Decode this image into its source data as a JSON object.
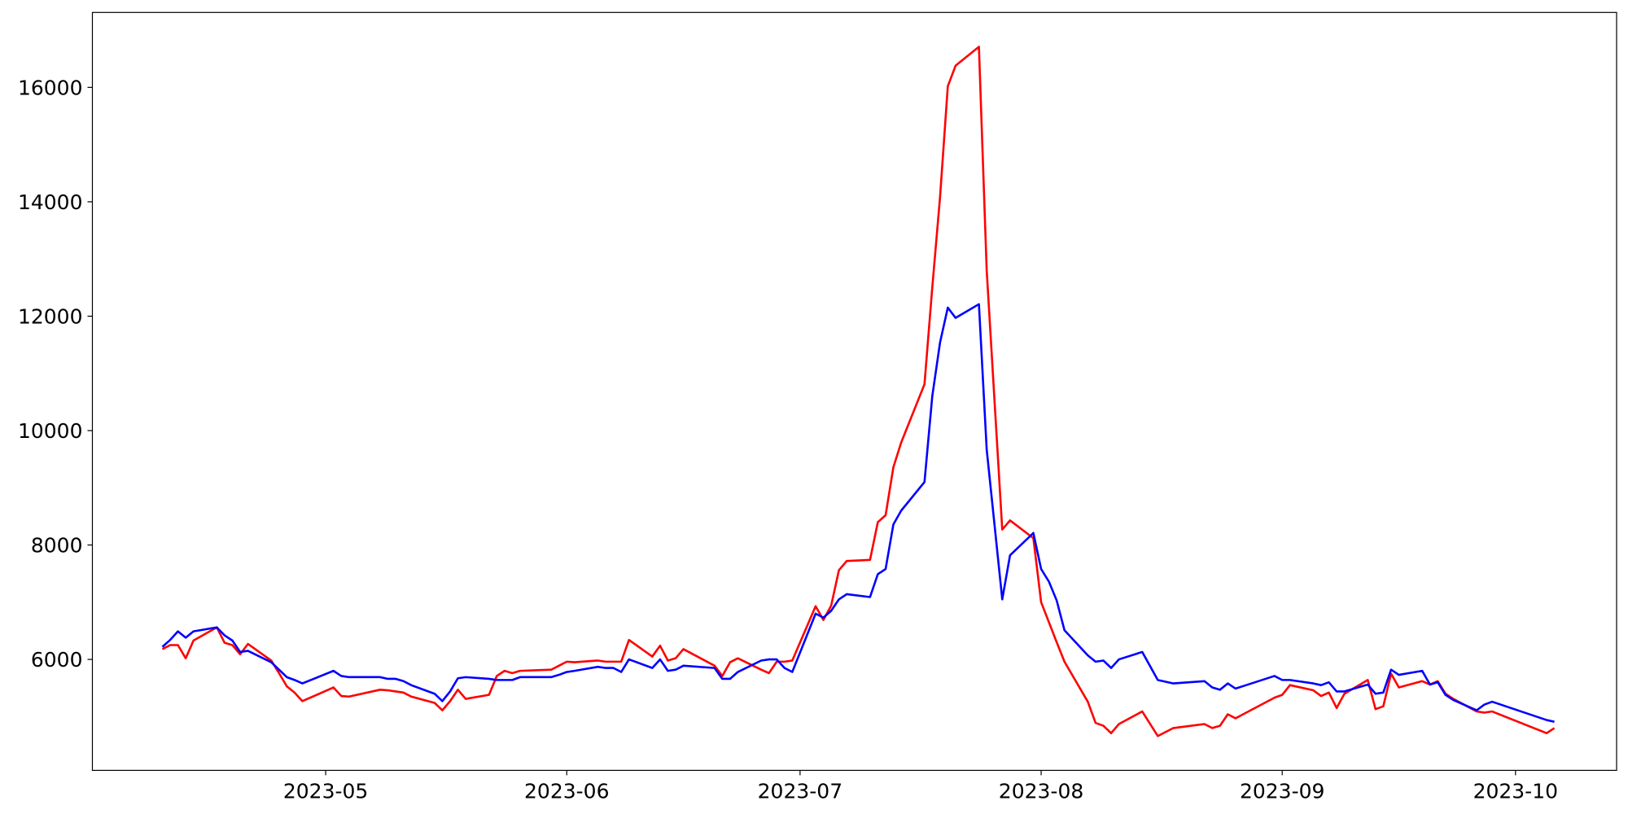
{
  "chart_data": {
    "type": "line",
    "x": [
      "2023-04-10",
      "2023-04-11",
      "2023-04-12",
      "2023-04-13",
      "2023-04-14",
      "2023-04-17",
      "2023-04-18",
      "2023-04-19",
      "2023-04-20",
      "2023-04-21",
      "2023-04-24",
      "2023-04-25",
      "2023-04-26",
      "2023-04-27",
      "2023-04-28",
      "2023-05-02",
      "2023-05-03",
      "2023-05-04",
      "2023-05-08",
      "2023-05-09",
      "2023-05-10",
      "2023-05-11",
      "2023-05-12",
      "2023-05-15",
      "2023-05-16",
      "2023-05-17",
      "2023-05-18",
      "2023-05-19",
      "2023-05-22",
      "2023-05-23",
      "2023-05-24",
      "2023-05-25",
      "2023-05-26",
      "2023-05-30",
      "2023-05-31",
      "2023-06-01",
      "2023-06-02",
      "2023-06-05",
      "2023-06-06",
      "2023-06-07",
      "2023-06-08",
      "2023-06-09",
      "2023-06-12",
      "2023-06-13",
      "2023-06-14",
      "2023-06-15",
      "2023-06-16",
      "2023-06-20",
      "2023-06-21",
      "2023-06-22",
      "2023-06-23",
      "2023-06-26",
      "2023-06-27",
      "2023-06-28",
      "2023-06-29",
      "2023-06-30",
      "2023-07-03",
      "2023-07-04",
      "2023-07-05",
      "2023-07-06",
      "2023-07-07",
      "2023-07-10",
      "2023-07-11",
      "2023-07-12",
      "2023-07-13",
      "2023-07-14",
      "2023-07-17",
      "2023-07-18",
      "2023-07-19",
      "2023-07-20",
      "2023-07-21",
      "2023-07-24",
      "2023-07-25",
      "2023-07-27",
      "2023-07-28",
      "2023-07-31",
      "2023-08-01",
      "2023-08-02",
      "2023-08-03",
      "2023-08-04",
      "2023-08-07",
      "2023-08-08",
      "2023-08-09",
      "2023-08-10",
      "2023-08-11",
      "2023-08-14",
      "2023-08-16",
      "2023-08-18",
      "2023-08-22",
      "2023-08-23",
      "2023-08-24",
      "2023-08-25",
      "2023-08-26",
      "2023-08-31",
      "2023-09-01",
      "2023-09-02",
      "2023-09-05",
      "2023-09-06",
      "2023-09-07",
      "2023-09-08",
      "2023-09-09",
      "2023-09-12",
      "2023-09-13",
      "2023-09-14",
      "2023-09-15",
      "2023-09-16",
      "2023-09-19",
      "2023-09-20",
      "2023-09-21",
      "2023-09-22",
      "2023-09-23",
      "2023-09-26",
      "2023-09-27",
      "2023-09-28",
      "2023-10-05",
      "2023-10-06"
    ],
    "series": [
      {
        "color": "#ff0000",
        "values": [
          6180,
          6250,
          6250,
          6020,
          6330,
          6560,
          6290,
          6250,
          6090,
          6270,
          5980,
          5760,
          5530,
          5420,
          5270,
          5510,
          5360,
          5350,
          5470,
          5460,
          5440,
          5420,
          5350,
          5240,
          5110,
          5270,
          5470,
          5310,
          5380,
          5710,
          5800,
          5760,
          5800,
          5820,
          5890,
          5960,
          5950,
          5980,
          5960,
          5960,
          5960,
          6340,
          6050,
          6240,
          5980,
          6020,
          6180,
          5890,
          5710,
          5950,
          6020,
          5820,
          5760,
          5960,
          5960,
          5980,
          6930,
          6690,
          6940,
          7560,
          7720,
          7740,
          8400,
          8520,
          9360,
          9790,
          10810,
          12500,
          14080,
          16020,
          16380,
          16710,
          12800,
          8270,
          8430,
          8120,
          7000,
          6650,
          6300,
          5960,
          5260,
          4890,
          4840,
          4710,
          4870,
          5090,
          4660,
          4800,
          4870,
          4800,
          4840,
          5040,
          4970,
          5330,
          5380,
          5550,
          5460,
          5360,
          5420,
          5150,
          5400,
          5640,
          5130,
          5180,
          5750,
          5510,
          5620,
          5560,
          5620,
          5400,
          5310,
          5090,
          5070,
          5090,
          4710,
          4800
        ]
      },
      {
        "color": "#0000ff",
        "values": [
          6220,
          6340,
          6490,
          6380,
          6490,
          6560,
          6420,
          6330,
          6130,
          6150,
          5950,
          5820,
          5690,
          5640,
          5580,
          5800,
          5710,
          5690,
          5690,
          5660,
          5660,
          5620,
          5550,
          5400,
          5270,
          5440,
          5670,
          5690,
          5660,
          5640,
          5640,
          5640,
          5690,
          5690,
          5730,
          5780,
          5800,
          5870,
          5850,
          5850,
          5780,
          6000,
          5850,
          6000,
          5800,
          5820,
          5890,
          5850,
          5660,
          5660,
          5780,
          5980,
          6000,
          6000,
          5850,
          5780,
          6800,
          6730,
          6850,
          7050,
          7140,
          7090,
          7490,
          7580,
          8360,
          8600,
          9100,
          10600,
          11540,
          12150,
          11970,
          12210,
          9670,
          7050,
          7820,
          8210,
          7580,
          7360,
          7030,
          6510,
          6070,
          5960,
          5980,
          5850,
          6000,
          6130,
          5640,
          5580,
          5620,
          5510,
          5470,
          5580,
          5490,
          5710,
          5640,
          5640,
          5580,
          5550,
          5600,
          5440,
          5440,
          5560,
          5400,
          5420,
          5820,
          5730,
          5800,
          5560,
          5600,
          5380,
          5290,
          5110,
          5210,
          5260,
          4940,
          4910
        ]
      }
    ],
    "xlim": [
      "2023-04-01",
      "2023-10-14"
    ],
    "xticks": [
      {
        "value": "2023-05-01",
        "label": "2023-05"
      },
      {
        "value": "2023-06-01",
        "label": "2023-06"
      },
      {
        "value": "2023-07-01",
        "label": "2023-07"
      },
      {
        "value": "2023-08-01",
        "label": "2023-08"
      },
      {
        "value": "2023-09-01",
        "label": "2023-09"
      },
      {
        "value": "2023-10-01",
        "label": "2023-10"
      }
    ],
    "ylim": [
      4060,
      17310
    ],
    "yticks": [
      6000,
      8000,
      10000,
      12000,
      14000,
      16000
    ],
    "grid": false
  }
}
